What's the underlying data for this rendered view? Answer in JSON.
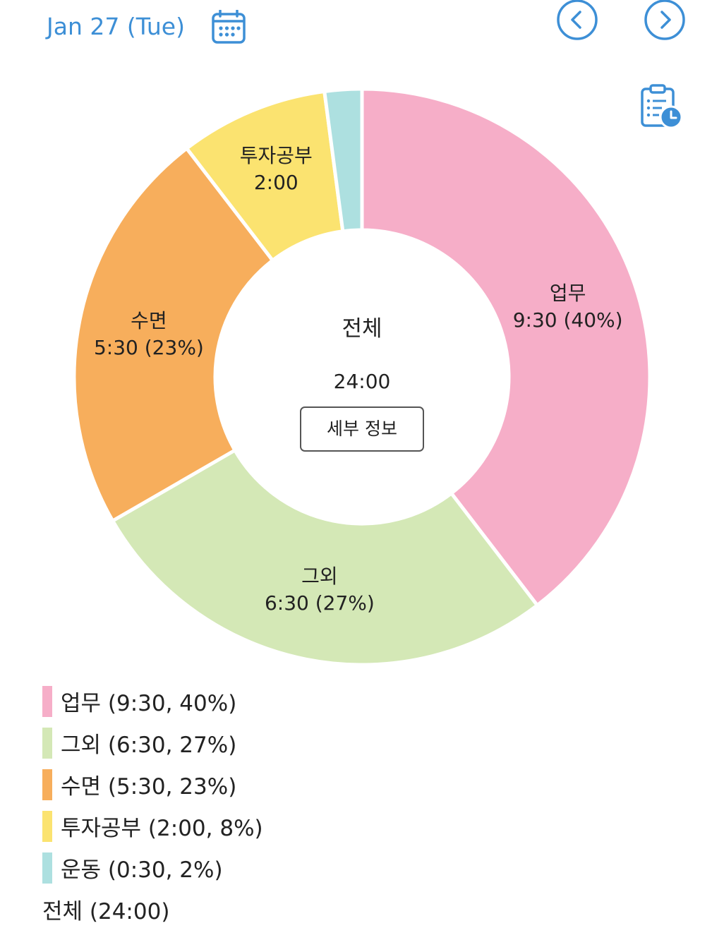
{
  "header": {
    "date_label": "Jan 27 (Tue)",
    "calendar_icon": "calendar-icon",
    "prev_icon": "chevron-left-circle-icon",
    "next_icon": "chevron-right-circle-icon",
    "report_icon": "clipboard-clock-icon",
    "accent_color": "#3d8fd6"
  },
  "center": {
    "title": "전체",
    "total": "24:00",
    "detail_button_label": "세부 정보"
  },
  "chart_data": {
    "type": "pie",
    "donut": true,
    "slices": [
      {
        "name": "업무",
        "time": "9:30",
        "percent": 40,
        "hours": 9.5,
        "color": "#f6aec8",
        "label_line1": "업무",
        "label_line2": "9:30 (40%)"
      },
      {
        "name": "그외",
        "time": "6:30",
        "percent": 27,
        "hours": 6.5,
        "color": "#d4e8b6",
        "label_line1": "그외",
        "label_line2": "6:30 (27%)"
      },
      {
        "name": "수면",
        "time": "5:30",
        "percent": 23,
        "hours": 5.5,
        "color": "#f7ae5c",
        "label_line1": "수면",
        "label_line2": "5:30 (23%)"
      },
      {
        "name": "투자공부",
        "time": "2:00",
        "percent": 8,
        "hours": 2.0,
        "color": "#fbe370",
        "label_line1": "투자공부",
        "label_line2": "2:00"
      },
      {
        "name": "운동",
        "time": "0:30",
        "percent": 2,
        "hours": 0.5,
        "color": "#ade0e0",
        "label_line1": "",
        "label_line2": ""
      }
    ]
  },
  "legend": {
    "items": [
      {
        "text": "업무 (9:30, 40%)",
        "color": "#f6aec8"
      },
      {
        "text": "그외 (6:30, 27%)",
        "color": "#d4e8b6"
      },
      {
        "text": "수면 (5:30, 23%)",
        "color": "#f7ae5c"
      },
      {
        "text": "투자공부 (2:00, 8%)",
        "color": "#fbe370"
      },
      {
        "text": "운동 (0:30, 2%)",
        "color": "#ade0e0"
      }
    ],
    "total_text": "전체 (24:00)"
  }
}
